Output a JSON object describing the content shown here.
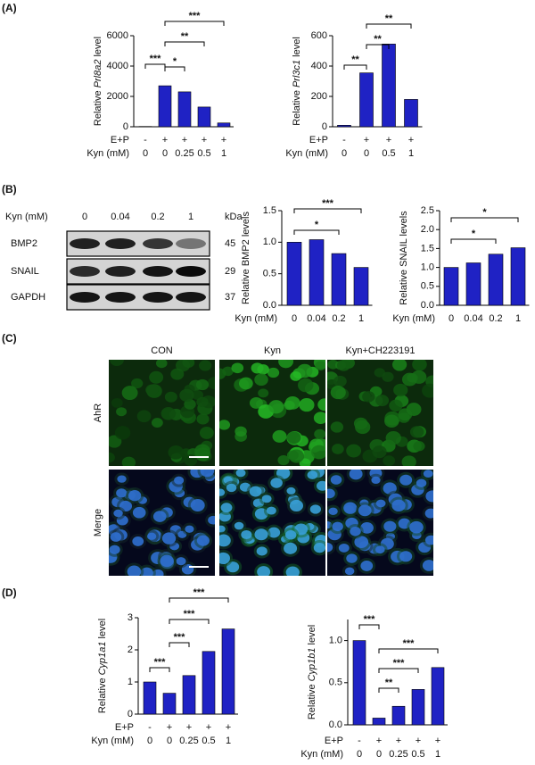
{
  "panels": [
    "(A)",
    "(B)",
    "(C)",
    "(D)"
  ],
  "chart_data": [
    {
      "type": "bar",
      "ylabel": {
        "pre": "Relative",
        "gene": "Prl8a2",
        "post": "level"
      },
      "color": "#1f22c4",
      "ep_label": "E+P",
      "ep": [
        "-",
        "+",
        "+",
        "+",
        "+"
      ],
      "cat_label": "Kyn (mM)",
      "categories": [
        "0",
        "0",
        "0.25",
        "0.5",
        "1"
      ],
      "values": [
        20,
        2700,
        2300,
        1300,
        250
      ],
      "ylim": [
        0,
        6000
      ],
      "yticks": [
        0,
        2000,
        4000,
        6000
      ],
      "comparisons": [
        {
          "label": "***",
          "groups": [
            0,
            1
          ]
        },
        {
          "label": "*",
          "groups": [
            1,
            2
          ]
        },
        {
          "label": "**",
          "groups": [
            1,
            3
          ]
        },
        {
          "label": "***",
          "groups": [
            1,
            4
          ]
        }
      ]
    },
    {
      "type": "bar",
      "ylabel": {
        "pre": "Relative",
        "gene": "Prl3c1",
        "post": "level"
      },
      "color": "#1f22c4",
      "ep_label": "E+P",
      "ep": [
        "-",
        "+",
        "+",
        "+"
      ],
      "cat_label": "Kyn (mM)",
      "categories": [
        "0",
        "0",
        "0.5",
        "1"
      ],
      "values": [
        10,
        355,
        545,
        180
      ],
      "ylim": [
        0,
        600
      ],
      "yticks": [
        0,
        200,
        400,
        600
      ],
      "comparisons": [
        {
          "label": "**",
          "groups": [
            0,
            1
          ]
        },
        {
          "label": "**",
          "groups": [
            1,
            2
          ]
        },
        {
          "label": "**",
          "groups": [
            1,
            3
          ]
        }
      ]
    },
    {
      "type": "bar",
      "ylabel": "Relative BMP2 levels",
      "color": "#1f22c4",
      "cat_label": "Kyn (mM)",
      "categories": [
        "0",
        "0.04",
        "0.2",
        "1"
      ],
      "values": [
        1.0,
        1.04,
        0.82,
        0.6
      ],
      "ylim": [
        0,
        1.5
      ],
      "yticks": [
        {
          "value": 0,
          "label": "0.0"
        },
        0.5,
        {
          "value": 1,
          "label": "1.0"
        },
        1.5
      ],
      "comparisons": [
        {
          "label": "*",
          "groups": [
            0,
            2
          ]
        },
        {
          "label": "***",
          "groups": [
            0,
            3
          ]
        }
      ]
    },
    {
      "type": "bar",
      "ylabel": "Relative SNAIL levels",
      "color": "#1f22c4",
      "cat_label": "Kyn (mM)",
      "categories": [
        "0",
        "0.04",
        "0.2",
        "1"
      ],
      "values": [
        1.0,
        1.12,
        1.35,
        1.52
      ],
      "ylim": [
        0,
        2.5
      ],
      "yticks": [
        {
          "value": 0,
          "label": "0.0"
        },
        0.5,
        {
          "value": 1,
          "label": "1.0"
        },
        1.5,
        {
          "value": 2,
          "label": "2.0"
        },
        2.5
      ],
      "comparisons": [
        {
          "label": "*",
          "groups": [
            0,
            2
          ]
        },
        {
          "label": "*",
          "groups": [
            0,
            3
          ]
        }
      ]
    },
    {
      "type": "bar",
      "ylabel": {
        "pre": "Relative",
        "gene": "Cyp1a1",
        "post": "level"
      },
      "color": "#1f22c4",
      "ep_label": "E+P",
      "ep": [
        "-",
        "+",
        "+",
        "+",
        "+"
      ],
      "cat_label": "Kyn (mM)",
      "categories": [
        "0",
        "0",
        "0.25",
        "0.5",
        "1"
      ],
      "values": [
        1.0,
        0.65,
        1.2,
        1.95,
        2.65
      ],
      "ylim": [
        0,
        3
      ],
      "yticks": [
        0,
        1,
        2,
        3
      ],
      "comparisons": [
        {
          "label": "***",
          "groups": [
            0,
            1
          ]
        },
        {
          "label": "***",
          "groups": [
            1,
            2
          ]
        },
        {
          "label": "***",
          "groups": [
            1,
            3
          ]
        },
        {
          "label": "***",
          "groups": [
            1,
            4
          ]
        }
      ]
    },
    {
      "type": "bar",
      "ylabel": {
        "pre": "Relative",
        "gene": "Cyp1b1",
        "post": "level"
      },
      "color": "#1f22c4",
      "ep_label": "E+P",
      "ep": [
        "-",
        "+",
        "+",
        "+",
        "+"
      ],
      "cat_label": "Kyn (mM)",
      "categories": [
        "0",
        "0",
        "0.25",
        "0.5",
        "1"
      ],
      "values": [
        1.0,
        0.08,
        0.22,
        0.42,
        0.68
      ],
      "ylim": [
        0,
        1.25
      ],
      "yticks": [
        {
          "value": 0,
          "label": "0.0"
        },
        0.5,
        {
          "value": 1,
          "label": "1.0"
        }
      ],
      "comparisons": [
        {
          "label": "***",
          "groups": [
            0,
            1
          ]
        },
        {
          "label": "**",
          "groups": [
            1,
            2
          ]
        },
        {
          "label": "***",
          "groups": [
            1,
            3
          ]
        },
        {
          "label": "***",
          "groups": [
            1,
            4
          ]
        }
      ]
    }
  ],
  "blot": {
    "header": "Kyn (mM)",
    "lanes": [
      "0",
      "0.04",
      "0.2",
      "1"
    ],
    "unit": "kDa",
    "rows": [
      {
        "name": "BMP2",
        "kda": 45
      },
      {
        "name": "SNAIL",
        "kda": 29
      },
      {
        "name": "GAPDH",
        "kda": 37
      }
    ]
  },
  "micrographs": {
    "columns": [
      "CON",
      "Kyn",
      "Kyn+CH223191"
    ],
    "rows": [
      "AhR",
      "Merge"
    ]
  }
}
